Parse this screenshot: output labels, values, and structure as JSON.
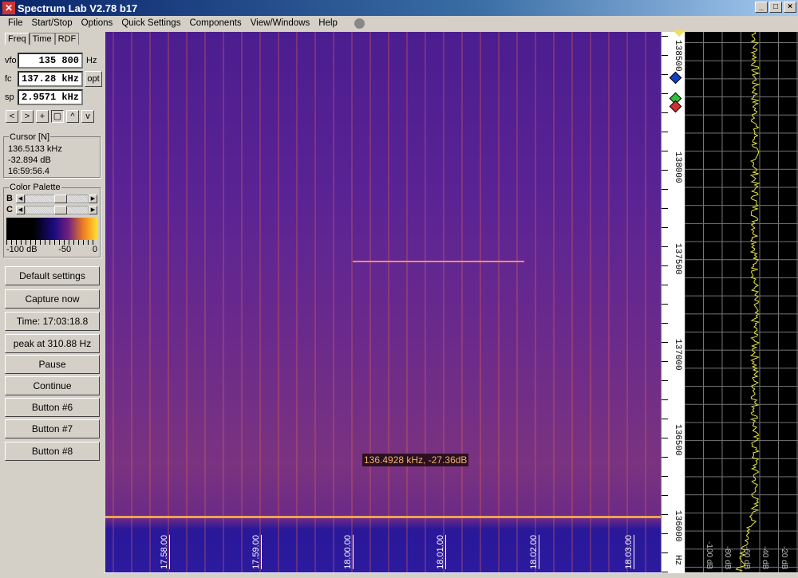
{
  "window": {
    "title": "Spectrum Lab V2.78 b17",
    "controls": [
      "_",
      "□",
      "×"
    ]
  },
  "menu": [
    "File",
    "Start/Stop",
    "Options",
    "Quick Settings",
    "Components",
    "View/Windows",
    "Help"
  ],
  "tabs": [
    "Freq",
    "Time",
    "RDF"
  ],
  "freq": {
    "vfo_label": "vfo",
    "vfo": "135 800",
    "vfo_unit": "Hz",
    "fc_label": "fc",
    "fc": "137.28 kHz",
    "opt": "opt",
    "sp_label": "sp",
    "sp": "2.9571 kHz",
    "nav_buttons": [
      "<",
      ">",
      "+",
      "▢",
      "^",
      "v"
    ]
  },
  "cursor": {
    "title": "Cursor [N]",
    "freq": "136.5133 kHz",
    "level": "-32.894 dB",
    "time": "16:59:56.4"
  },
  "palette": {
    "title": "Color Palette",
    "b": "B",
    "c": "C",
    "scale": [
      "-100 dB",
      "-50",
      "0"
    ],
    "b_value": 0.45,
    "c_value": 0.45
  },
  "buttons": [
    "Default settings",
    "Capture now",
    "Time:  17:03:18.8",
    "peak at 310.88 Hz",
    "Pause",
    "Continue",
    "Button #6",
    "Button #7",
    "Button #8"
  ],
  "waterfall": {
    "tooltip": "136.4928 kHz, -27.36dB",
    "time_labels": [
      "17.58.00",
      "17.59.00",
      "18.00.00",
      "18.01.00",
      "18.02.00",
      "18.03.00"
    ]
  },
  "freq_axis": {
    "labels": [
      "138500",
      "138000",
      "137500",
      "137000",
      "136500",
      "136000"
    ],
    "unit": "Hz"
  },
  "spectrum": {
    "db_labels": [
      "-100 dB",
      "-80 dB",
      "-60 dB",
      "-40 dB",
      "-20 dB"
    ],
    "trace_color": "#e8e840"
  }
}
